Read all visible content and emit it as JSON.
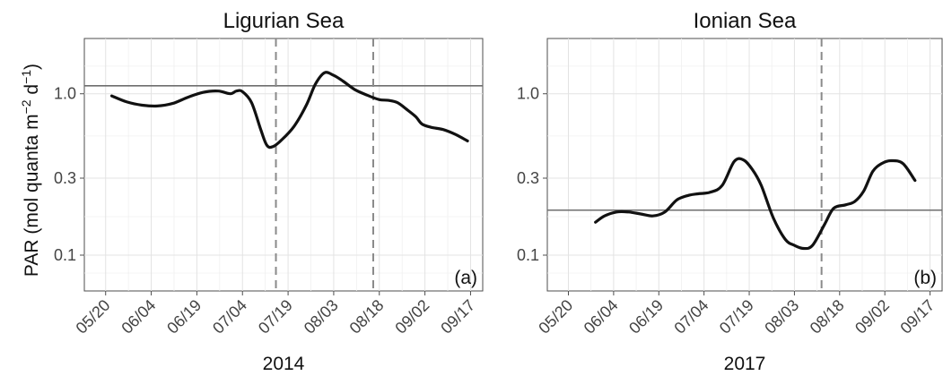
{
  "y_axis_title": {
    "base": "PAR (mol quanta m",
    "sup1": "−2",
    "mid": " d",
    "sup2": "−1",
    "end": ")"
  },
  "colors": {
    "series": "#111111",
    "reference_line": "#6e6e6e",
    "event_line": "#8a8a8a",
    "grid": "#e3e3e3",
    "panel_border": "#4d4d4d"
  },
  "chart_data": [
    {
      "type": "line",
      "title": "Ligurian Sea",
      "tag": "(a)",
      "xlabel": "2014",
      "ylabel": "PAR (mol quanta m−2 d−1)",
      "y_scale": "log",
      "ylim": [
        0.06,
        2.2
      ],
      "xlim": [
        "2014-05-13",
        "2014-09-21"
      ],
      "grid": true,
      "x_ticks": [
        "2014-05-20",
        "2014-06-04",
        "2014-06-19",
        "2014-07-04",
        "2014-07-19",
        "2014-08-03",
        "2014-08-18",
        "2014-09-02",
        "2014-09-17"
      ],
      "x_tick_labels": [
        "05/20",
        "06/04",
        "06/19",
        "07/04",
        "07/19",
        "08/03",
        "08/18",
        "09/02",
        "09/17"
      ],
      "y_ticks": [
        0.1,
        0.3,
        1.0
      ],
      "y_tick_labels": [
        "0.1",
        "0.3",
        "1.0"
      ],
      "reference_line_y": 1.12,
      "vertical_lines": [
        "2014-07-15",
        "2014-08-16"
      ],
      "series": [
        {
          "x": [
            "2014-05-22",
            "2014-05-27",
            "2014-06-01",
            "2014-06-06",
            "2014-06-11",
            "2014-06-16",
            "2014-06-21",
            "2014-06-26",
            "2014-06-30",
            "2014-07-02",
            "2014-07-04",
            "2014-07-07",
            "2014-07-10",
            "2014-07-12",
            "2014-07-14",
            "2014-07-17",
            "2014-07-21",
            "2014-07-25",
            "2014-07-28",
            "2014-07-31",
            "2014-08-03",
            "2014-08-06",
            "2014-08-10",
            "2014-08-14",
            "2014-08-18",
            "2014-08-21",
            "2014-08-24",
            "2014-08-27",
            "2014-08-30",
            "2014-09-01",
            "2014-09-04",
            "2014-09-08",
            "2014-09-12",
            "2014-09-16"
          ],
          "y": [
            0.97,
            0.89,
            0.85,
            0.84,
            0.87,
            0.95,
            1.02,
            1.04,
            1.0,
            1.04,
            1.03,
            0.88,
            0.6,
            0.48,
            0.47,
            0.52,
            0.63,
            0.85,
            1.15,
            1.35,
            1.3,
            1.2,
            1.06,
            0.98,
            0.92,
            0.91,
            0.88,
            0.8,
            0.72,
            0.65,
            0.62,
            0.6,
            0.56,
            0.51
          ]
        }
      ]
    },
    {
      "type": "line",
      "title": "Ionian Sea",
      "tag": "(b)",
      "xlabel": "2017",
      "ylabel": "PAR (mol quanta m−2 d−1)",
      "y_scale": "log",
      "ylim": [
        0.06,
        2.2
      ],
      "xlim": [
        "2017-05-13",
        "2017-09-21"
      ],
      "grid": true,
      "x_ticks": [
        "2017-05-20",
        "2017-06-04",
        "2017-06-19",
        "2017-07-04",
        "2017-07-19",
        "2017-08-03",
        "2017-08-18",
        "2017-09-02",
        "2017-09-17"
      ],
      "x_tick_labels": [
        "05/20",
        "06/04",
        "06/19",
        "07/04",
        "07/19",
        "08/03",
        "08/18",
        "09/02",
        "09/17"
      ],
      "y_ticks": [
        0.1,
        0.3,
        1.0
      ],
      "y_tick_labels": [
        "0.1",
        "0.3",
        "1.0"
      ],
      "reference_line_y": 0.19,
      "vertical_lines": [
        "2017-08-12"
      ],
      "series": [
        {
          "x": [
            "2017-05-29",
            "2017-06-01",
            "2017-06-05",
            "2017-06-09",
            "2017-06-13",
            "2017-06-17",
            "2017-06-21",
            "2017-06-25",
            "2017-06-29",
            "2017-07-02",
            "2017-07-06",
            "2017-07-10",
            "2017-07-14",
            "2017-07-17",
            "2017-07-20",
            "2017-07-23",
            "2017-07-27",
            "2017-07-31",
            "2017-08-03",
            "2017-08-06",
            "2017-08-09",
            "2017-08-13",
            "2017-08-16",
            "2017-08-20",
            "2017-08-23",
            "2017-08-26",
            "2017-08-29",
            "2017-09-01",
            "2017-09-04",
            "2017-09-08",
            "2017-09-12"
          ],
          "y": [
            0.16,
            0.175,
            0.185,
            0.185,
            0.18,
            0.175,
            0.185,
            0.22,
            0.235,
            0.24,
            0.245,
            0.27,
            0.38,
            0.39,
            0.34,
            0.27,
            0.17,
            0.125,
            0.115,
            0.11,
            0.115,
            0.155,
            0.195,
            0.205,
            0.215,
            0.25,
            0.33,
            0.37,
            0.385,
            0.37,
            0.29
          ]
        }
      ]
    }
  ]
}
